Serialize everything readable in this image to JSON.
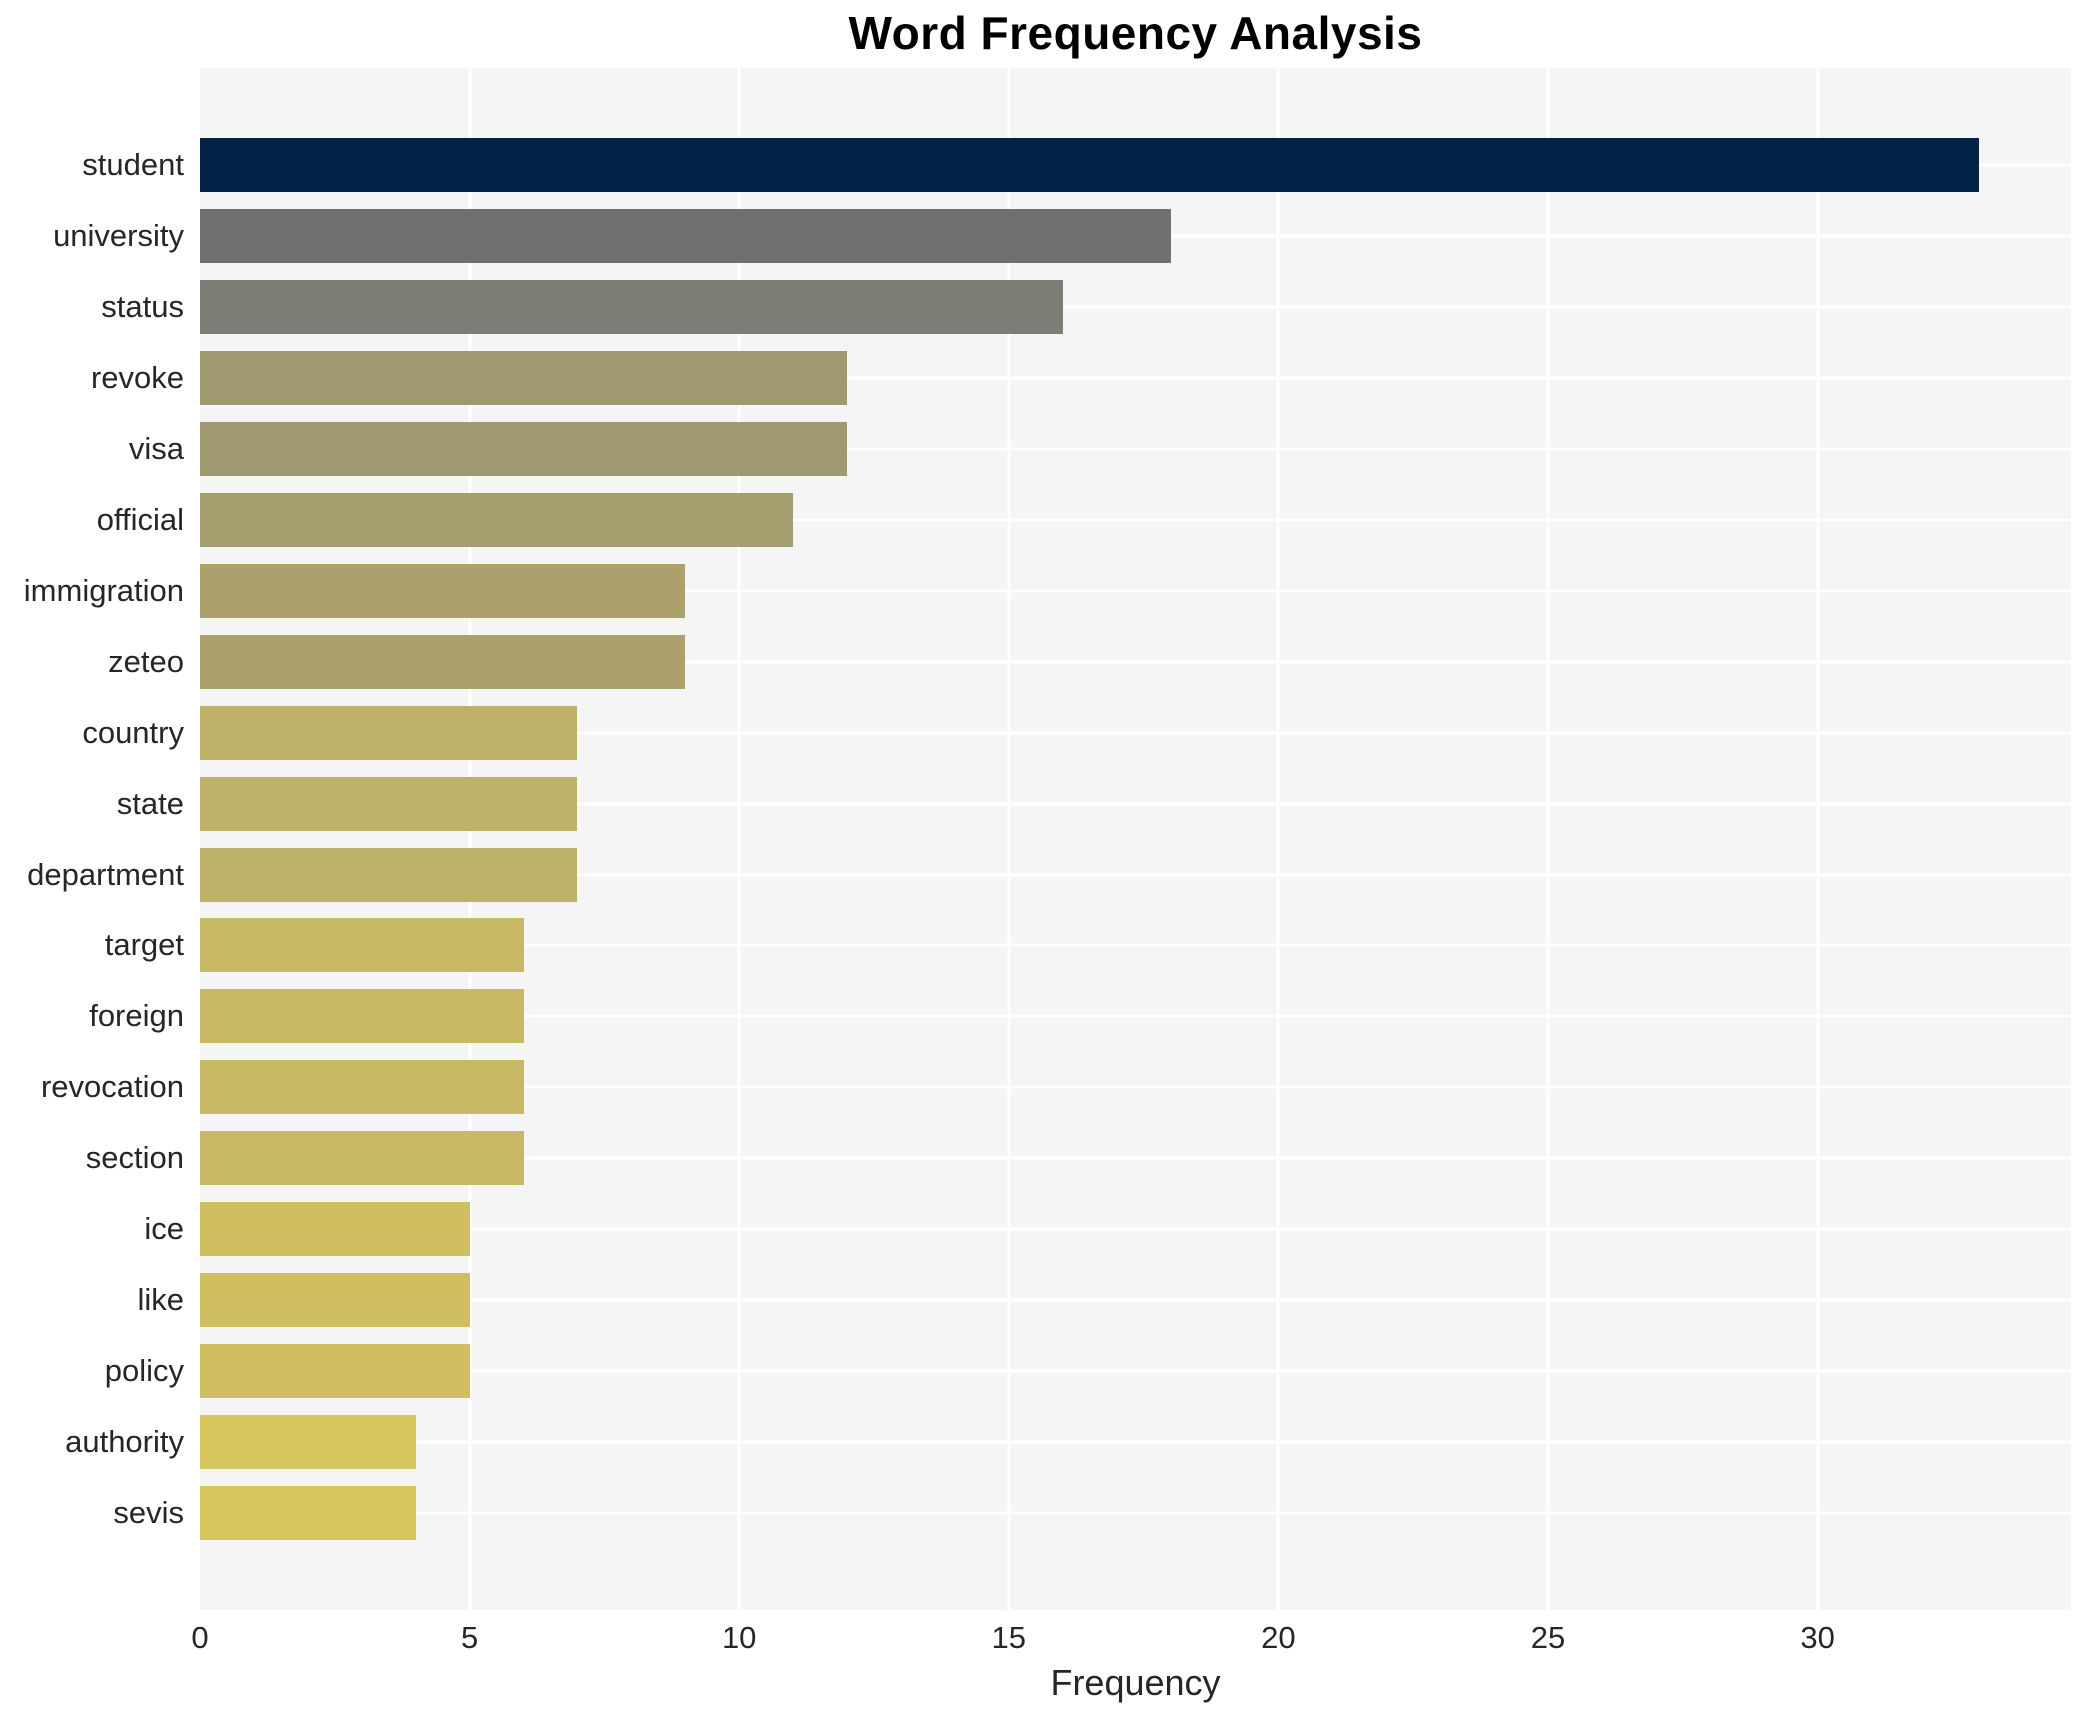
{
  "chart_data": {
    "type": "bar",
    "orientation": "horizontal",
    "title": "Word Frequency Analysis",
    "xlabel": "Frequency",
    "ylabel": "",
    "categories": [
      "student",
      "university",
      "status",
      "revoke",
      "visa",
      "official",
      "immigration",
      "zeteo",
      "country",
      "state",
      "department",
      "target",
      "foreign",
      "revocation",
      "section",
      "ice",
      "like",
      "policy",
      "authority",
      "sevis"
    ],
    "values": [
      33,
      18,
      16,
      12,
      12,
      11,
      9,
      9,
      7,
      7,
      7,
      6,
      6,
      6,
      6,
      5,
      5,
      5,
      4,
      4
    ],
    "bar_colors": [
      "#032248",
      "#6f7072",
      "#7c7d74",
      "#a0986f",
      "#a0986f",
      "#a69d6e",
      "#aca16d",
      "#aca16d",
      "#c0b168",
      "#c0b168",
      "#c0b168",
      "#c8b965",
      "#c8b965",
      "#c8b965",
      "#c8b965",
      "#cfbf61",
      "#cfbf61",
      "#cfbf61",
      "#d6c55c",
      "#d6c55c"
    ],
    "xticks": [
      0,
      5,
      10,
      15,
      20,
      25,
      30
    ],
    "xlim": [
      0,
      34.7
    ],
    "grid": true,
    "legend": "none",
    "plot_background": "#f5f5f6",
    "outer_background": "#ffffff",
    "gridline_color": "#ffffff",
    "tick_color": "#262626",
    "title_color": "#000000"
  }
}
